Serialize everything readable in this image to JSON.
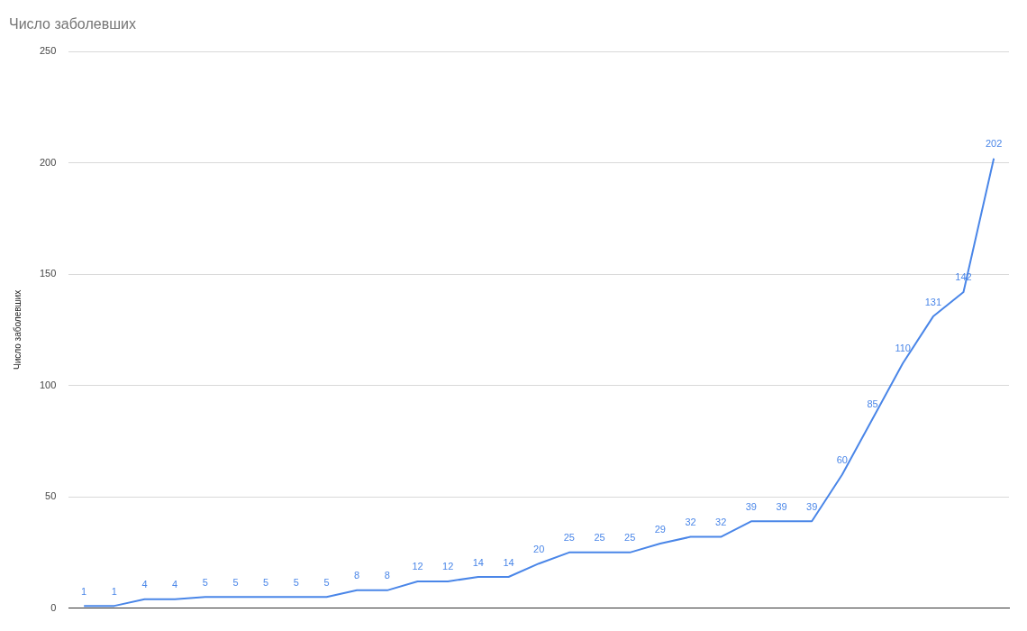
{
  "chart_data": {
    "type": "line",
    "title": "Число заболевших",
    "ylabel": "Число заболевших",
    "categories": [
      null,
      null,
      null,
      null,
      null,
      null,
      null,
      null,
      null,
      null,
      null,
      null,
      null,
      null,
      null,
      null,
      null,
      null,
      null,
      null,
      null,
      null,
      null,
      null,
      null,
      null,
      null,
      null,
      null,
      null,
      null
    ],
    "series": [
      {
        "color": "#4a86e8",
        "values": [
          1,
          1,
          4,
          4,
          5,
          5,
          5,
          5,
          5,
          8,
          8,
          12,
          12,
          14,
          14,
          20,
          25,
          25,
          25,
          29,
          32,
          32,
          39,
          39,
          39,
          60,
          85,
          110,
          131,
          142,
          202
        ]
      }
    ],
    "ylim": [
      0,
      250
    ],
    "yticks": [
      0,
      50,
      100,
      150,
      200,
      250
    ],
    "grid": "y",
    "legend": false,
    "marker": "none",
    "line_style": "solid",
    "data_labels": true
  }
}
